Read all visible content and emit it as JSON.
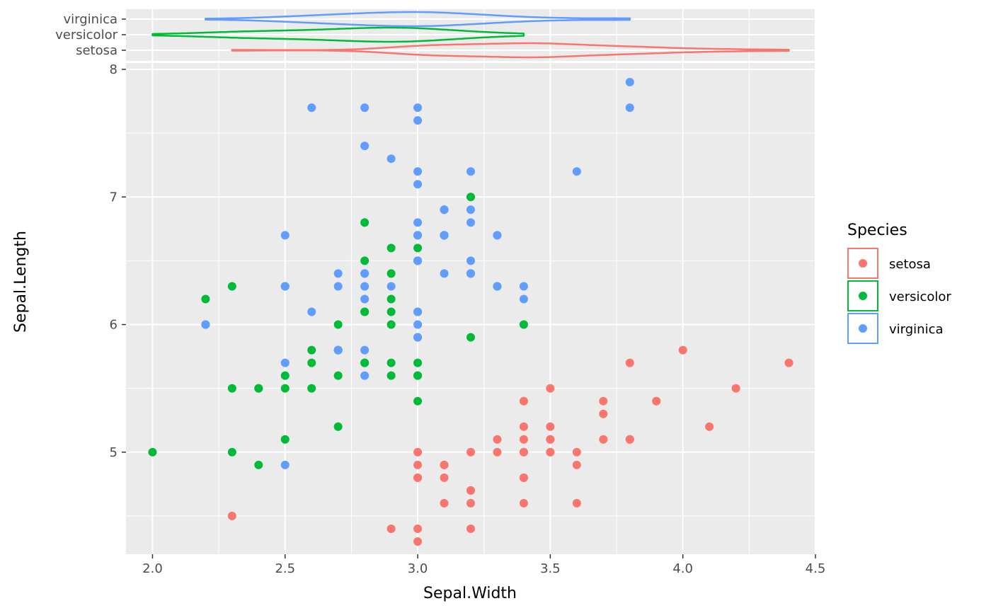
{
  "chart_data": [
    {
      "type": "violin",
      "categories": [
        "setosa",
        "versicolor",
        "virginica"
      ],
      "x_range": {
        "setosa": [
          2.3,
          4.4
        ],
        "versicolor": [
          2.0,
          3.4
        ],
        "virginica": [
          2.2,
          3.8
        ]
      },
      "xlim": [
        1.9,
        4.5
      ]
    },
    {
      "type": "scatter",
      "xlabel": "Sepal.Width",
      "ylabel": "Sepal.Length",
      "xlim": [
        1.9,
        4.5
      ],
      "ylim": [
        4.2,
        8.05
      ],
      "xticks": [
        "2.0",
        "2.5",
        "3.0",
        "3.5",
        "4.0",
        "4.5"
      ],
      "yticks": [
        "5",
        "6",
        "7",
        "8"
      ],
      "legend": {
        "title": "Species",
        "position": "right"
      },
      "series": [
        {
          "name": "setosa",
          "color": "#F8766D",
          "points": [
            [
              3.5,
              5.1
            ],
            [
              3.0,
              4.9
            ],
            [
              3.2,
              4.7
            ],
            [
              3.1,
              4.6
            ],
            [
              3.6,
              5.0
            ],
            [
              3.9,
              5.4
            ],
            [
              3.4,
              4.6
            ],
            [
              3.4,
              5.0
            ],
            [
              2.9,
              4.4
            ],
            [
              3.1,
              4.9
            ],
            [
              3.7,
              5.4
            ],
            [
              3.4,
              4.8
            ],
            [
              3.0,
              4.8
            ],
            [
              3.0,
              4.3
            ],
            [
              4.0,
              5.8
            ],
            [
              4.4,
              5.7
            ],
            [
              3.9,
              5.4
            ],
            [
              3.5,
              5.1
            ],
            [
              3.8,
              5.7
            ],
            [
              3.8,
              5.1
            ],
            [
              3.4,
              5.4
            ],
            [
              3.7,
              5.1
            ],
            [
              3.6,
              4.6
            ],
            [
              3.3,
              5.1
            ],
            [
              3.4,
              4.8
            ],
            [
              3.0,
              5.0
            ],
            [
              3.4,
              5.0
            ],
            [
              3.5,
              5.2
            ],
            [
              3.4,
              5.2
            ],
            [
              3.2,
              4.7
            ],
            [
              3.1,
              4.8
            ],
            [
              3.4,
              5.4
            ],
            [
              4.1,
              5.2
            ],
            [
              4.2,
              5.5
            ],
            [
              3.1,
              4.9
            ],
            [
              3.2,
              5.0
            ],
            [
              3.5,
              5.5
            ],
            [
              3.6,
              4.9
            ],
            [
              3.0,
              4.4
            ],
            [
              3.4,
              5.1
            ],
            [
              3.5,
              5.0
            ],
            [
              2.3,
              4.5
            ],
            [
              3.2,
              4.4
            ],
            [
              3.5,
              5.0
            ],
            [
              3.8,
              5.1
            ],
            [
              3.0,
              4.8
            ],
            [
              3.8,
              5.1
            ],
            [
              3.2,
              4.6
            ],
            [
              3.7,
              5.3
            ],
            [
              3.3,
              5.0
            ]
          ]
        },
        {
          "name": "versicolor",
          "color": "#00BA38",
          "points": [
            [
              3.2,
              7.0
            ],
            [
              3.2,
              6.4
            ],
            [
              3.1,
              6.9
            ],
            [
              2.3,
              5.5
            ],
            [
              2.8,
              6.5
            ],
            [
              2.8,
              5.7
            ],
            [
              3.3,
              6.3
            ],
            [
              2.4,
              4.9
            ],
            [
              2.9,
              6.6
            ],
            [
              2.7,
              5.2
            ],
            [
              2.0,
              5.0
            ],
            [
              3.0,
              5.9
            ],
            [
              2.2,
              6.0
            ],
            [
              2.9,
              6.1
            ],
            [
              2.9,
              5.6
            ],
            [
              3.1,
              6.7
            ],
            [
              3.0,
              5.6
            ],
            [
              2.7,
              5.8
            ],
            [
              2.2,
              6.2
            ],
            [
              2.5,
              5.6
            ],
            [
              3.2,
              5.9
            ],
            [
              2.8,
              6.1
            ],
            [
              2.5,
              6.3
            ],
            [
              2.8,
              6.1
            ],
            [
              2.9,
              6.4
            ],
            [
              3.0,
              6.6
            ],
            [
              2.8,
              6.8
            ],
            [
              3.0,
              6.7
            ],
            [
              2.9,
              6.0
            ],
            [
              2.6,
              5.7
            ],
            [
              2.4,
              5.5
            ],
            [
              2.4,
              5.5
            ],
            [
              2.7,
              5.8
            ],
            [
              2.7,
              6.0
            ],
            [
              3.0,
              5.4
            ],
            [
              3.4,
              6.0
            ],
            [
              3.1,
              6.7
            ],
            [
              2.3,
              6.3
            ],
            [
              3.0,
              5.6
            ],
            [
              2.5,
              5.5
            ],
            [
              2.6,
              5.5
            ],
            [
              3.0,
              6.1
            ],
            [
              2.6,
              5.8
            ],
            [
              2.3,
              5.0
            ],
            [
              2.7,
              5.6
            ],
            [
              3.0,
              5.7
            ],
            [
              2.9,
              5.7
            ],
            [
              2.9,
              6.2
            ],
            [
              2.5,
              5.1
            ],
            [
              2.8,
              5.7
            ]
          ]
        },
        {
          "name": "virginica",
          "color": "#619CFF",
          "points": [
            [
              3.3,
              6.3
            ],
            [
              2.7,
              5.8
            ],
            [
              3.0,
              7.1
            ],
            [
              2.9,
              6.3
            ],
            [
              3.0,
              6.5
            ],
            [
              3.0,
              7.6
            ],
            [
              2.5,
              4.9
            ],
            [
              2.9,
              7.3
            ],
            [
              2.5,
              6.7
            ],
            [
              3.6,
              7.2
            ],
            [
              3.2,
              6.5
            ],
            [
              2.7,
              6.4
            ],
            [
              3.0,
              6.8
            ],
            [
              2.5,
              5.7
            ],
            [
              2.8,
              5.8
            ],
            [
              3.2,
              6.4
            ],
            [
              3.0,
              6.5
            ],
            [
              3.8,
              7.7
            ],
            [
              2.6,
              7.7
            ],
            [
              2.2,
              6.0
            ],
            [
              3.2,
              6.9
            ],
            [
              2.8,
              5.6
            ],
            [
              2.8,
              7.7
            ],
            [
              2.7,
              6.3
            ],
            [
              3.3,
              6.7
            ],
            [
              3.2,
              7.2
            ],
            [
              2.8,
              6.2
            ],
            [
              3.0,
              6.1
            ],
            [
              2.8,
              6.4
            ],
            [
              3.0,
              7.2
            ],
            [
              2.8,
              7.4
            ],
            [
              3.8,
              7.9
            ],
            [
              2.8,
              6.4
            ],
            [
              2.8,
              6.3
            ],
            [
              2.6,
              6.1
            ],
            [
              3.0,
              7.7
            ],
            [
              3.4,
              6.3
            ],
            [
              3.1,
              6.4
            ],
            [
              3.0,
              6.0
            ],
            [
              3.1,
              6.9
            ],
            [
              3.1,
              6.7
            ],
            [
              3.1,
              6.9
            ],
            [
              2.7,
              5.8
            ],
            [
              3.2,
              6.8
            ],
            [
              3.3,
              6.7
            ],
            [
              3.0,
              6.7
            ],
            [
              2.5,
              6.3
            ],
            [
              3.0,
              6.5
            ],
            [
              3.4,
              6.2
            ],
            [
              3.0,
              5.9
            ]
          ]
        }
      ]
    }
  ]
}
